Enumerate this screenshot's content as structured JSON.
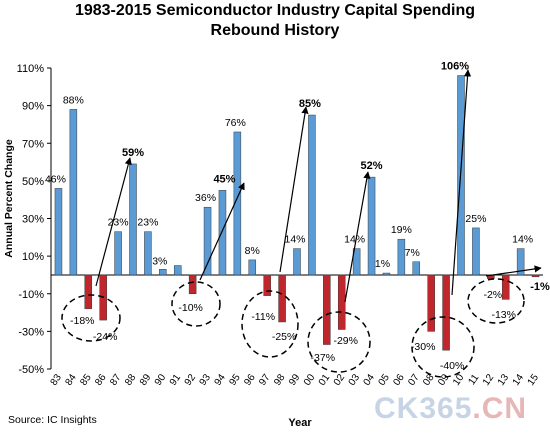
{
  "chart_data": {
    "type": "bar",
    "title": "1983-2015 Semiconductor Industry Capital Spending",
    "subtitle": "Rebound History",
    "xlabel": "Year",
    "ylabel": "Annual Percent Change",
    "ylim": [
      -50,
      110
    ],
    "yticks": [
      "-50%",
      "-30%",
      "-10%",
      "10%",
      "30%",
      "50%",
      "70%",
      "90%",
      "110%"
    ],
    "grid": false,
    "categories": [
      "83",
      "84",
      "85",
      "86",
      "87",
      "88",
      "89",
      "90",
      "91",
      "92",
      "93",
      "94",
      "95",
      "96",
      "97",
      "98",
      "99",
      "00",
      "01",
      "02",
      "03",
      "04",
      "05",
      "06",
      "07",
      "08",
      "09",
      "10",
      "11",
      "12",
      "13",
      "14",
      "15"
    ],
    "values": [
      46,
      88,
      -18,
      -24,
      23,
      59,
      23,
      3,
      5,
      -10,
      36,
      45,
      76,
      8,
      -11,
      -25,
      14,
      85,
      -37,
      -29,
      14,
      52,
      1,
      19,
      7,
      -30,
      -40,
      106,
      25,
      -2,
      -13,
      14,
      -1
    ],
    "data_labels": [
      "46%",
      "88%",
      "-18%",
      "-24%",
      "23%",
      "59%",
      "23%",
      "3%",
      "",
      "-10%",
      "36%",
      "45%",
      "76%",
      "8%",
      "-11%",
      "-25%",
      "14%",
      "85%",
      "-37%",
      "-29%",
      "14%",
      "52%",
      "1%",
      "19%",
      "7%",
      "-30%",
      "-40%",
      "106%",
      "25%",
      "-2%",
      "-13%",
      "14%",
      "-1%"
    ],
    "bold_labels": [
      "59%",
      "45%",
      "85%",
      "52%",
      "106%",
      "-1%"
    ],
    "colors": {
      "positive": "#5b9bd5",
      "negative": "#c0272d"
    }
  },
  "source": "Source: IC Insights",
  "watermark": {
    "main": "CK365",
    "suffix": ".CN"
  }
}
